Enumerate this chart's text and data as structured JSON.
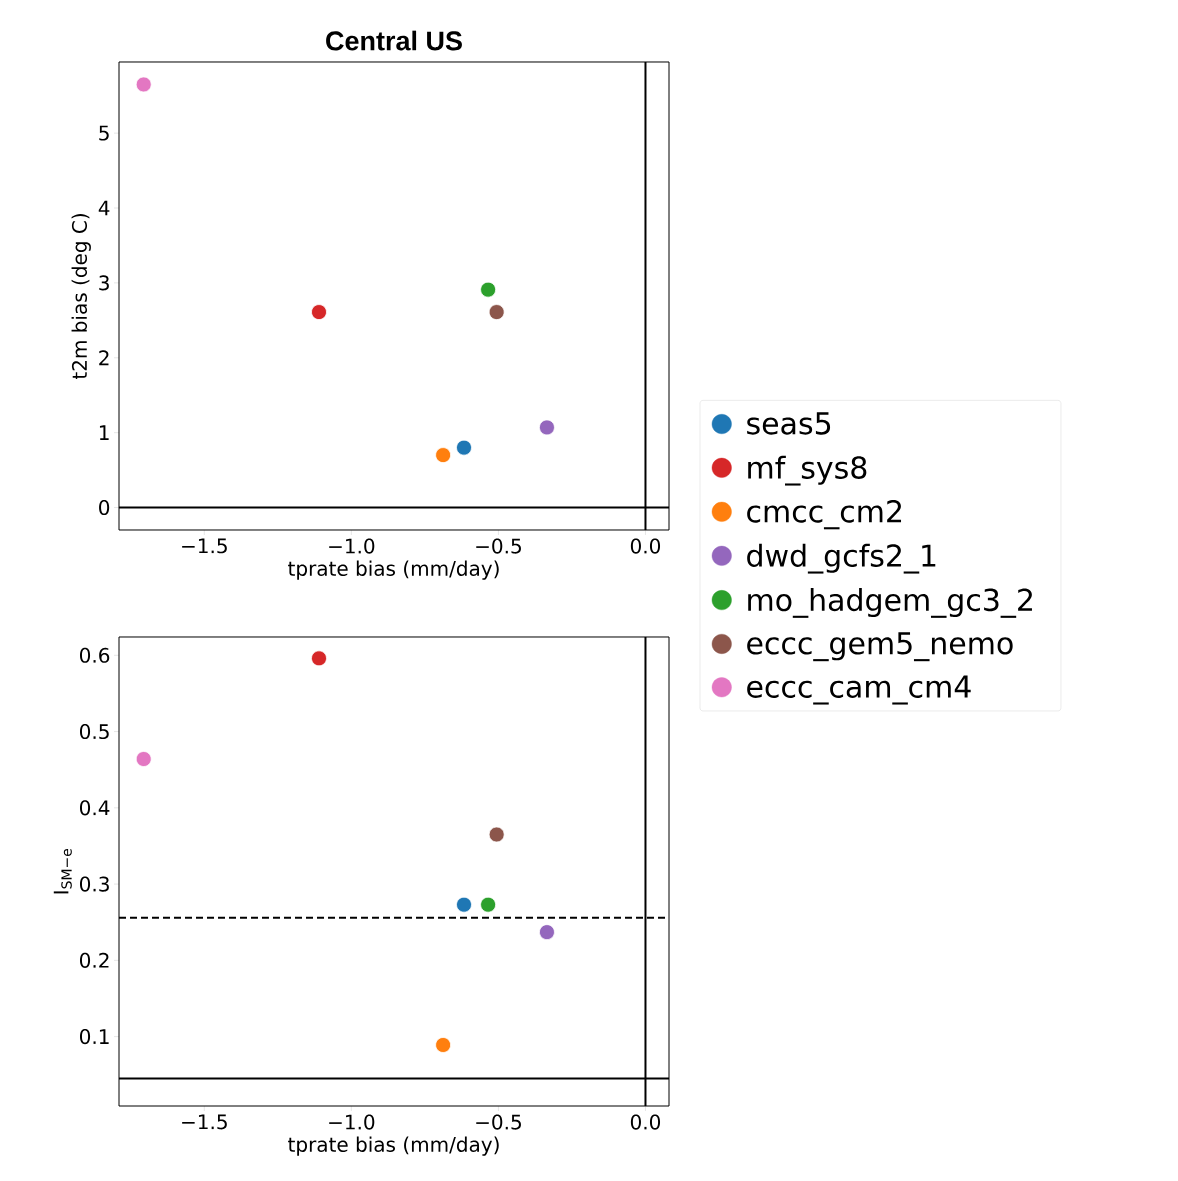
{
  "chart_data": [
    {
      "type": "scatter",
      "title": "Central US",
      "xlabel": "tprate bias (mm/day)",
      "ylabel": "t2m bias (deg C)",
      "marker": "circle",
      "xlim": [
        -1.79,
        0.08
      ],
      "xticks": [
        {
          "value": -1.5,
          "label": "−1.5"
        },
        {
          "value": -1.0,
          "label": "−1.0"
        },
        {
          "value": -0.5,
          "label": "−0.5"
        },
        {
          "value": 0,
          "label": "0.0"
        }
      ],
      "ylim": [
        -0.3,
        5.95
      ],
      "yticks": [
        0,
        1,
        2,
        3,
        4,
        5
      ],
      "ref_lines": [
        {
          "axis": "x",
          "value": 0,
          "color": "#000000",
          "line_style": "solid"
        },
        {
          "axis": "y",
          "value": 0,
          "color": "#000000",
          "line_style": "solid"
        }
      ],
      "series": [
        {
          "color": "#1f77b4",
          "x": [
            -0.617
          ],
          "values": [
            0.8
          ]
        },
        {
          "color": "#d62728",
          "x": [
            -1.11
          ],
          "values": [
            2.61
          ]
        },
        {
          "color": "#ff7f0e",
          "x": [
            -0.688
          ],
          "values": [
            0.7
          ]
        },
        {
          "color": "#9467bd",
          "x": [
            -0.335
          ],
          "values": [
            1.07
          ]
        },
        {
          "color": "#2ca02c",
          "x": [
            -0.535
          ],
          "values": [
            2.91
          ]
        },
        {
          "color": "#8c564b",
          "x": [
            -0.506
          ],
          "values": [
            2.61
          ]
        },
        {
          "color": "#e377c2",
          "x": [
            -1.706
          ],
          "values": [
            5.65
          ]
        }
      ]
    },
    {
      "type": "scatter",
      "xlabel": "tprate bias (mm/day)",
      "ylabel": "I$_{SM−e}$",
      "marker": "circle",
      "legend": "right",
      "xlim": [
        -1.79,
        0.08
      ],
      "xticks": [
        {
          "value": -1.5,
          "label": "−1.5"
        },
        {
          "value": -1.0,
          "label": "−1.0"
        },
        {
          "value": -0.5,
          "label": "−0.5"
        },
        {
          "value": 0,
          "label": "0.0"
        }
      ],
      "ylim": [
        0.009,
        0.624
      ],
      "yticks": [
        0.1,
        0.2,
        0.3,
        0.4,
        0.5,
        0.6
      ],
      "ref_lines": [
        {
          "axis": "x",
          "value": 0,
          "color": "#000000",
          "line_style": "solid"
        },
        {
          "axis": "y",
          "value": 0.256,
          "color": "#000000",
          "line_style": "dashed"
        },
        {
          "axis": "y",
          "value": 0.045,
          "color": "#000000",
          "line_style": "solid"
        }
      ],
      "series": [
        {
          "name": "seas5",
          "color": "#1f77b4",
          "x": [
            -0.617
          ],
          "values": [
            0.273
          ]
        },
        {
          "name": "mf_sys8",
          "color": "#d62728",
          "x": [
            -1.11
          ],
          "values": [
            0.596
          ]
        },
        {
          "name": "cmcc_cm2",
          "color": "#ff7f0e",
          "x": [
            -0.688
          ],
          "values": [
            0.089
          ]
        },
        {
          "name": "dwd_gcfs2_1",
          "color": "#9467bd",
          "x": [
            -0.335
          ],
          "values": [
            0.237
          ]
        },
        {
          "name": "mo_hadgem_gc3_2",
          "color": "#2ca02c",
          "x": [
            -0.535
          ],
          "values": [
            0.273
          ]
        },
        {
          "name": "eccc_gem5_nemo",
          "color": "#8c564b",
          "x": [
            -0.506
          ],
          "values": [
            0.365
          ]
        },
        {
          "name": "eccc_cam_cm4",
          "color": "#e377c2",
          "x": [
            -1.706
          ],
          "values": [
            0.464
          ]
        }
      ]
    }
  ]
}
